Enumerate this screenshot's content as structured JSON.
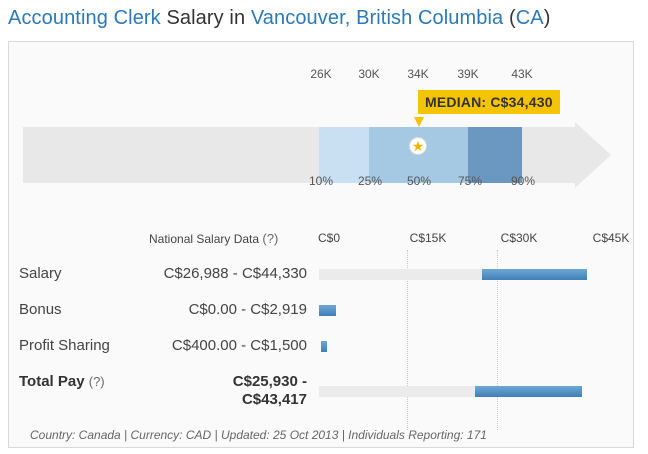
{
  "title": {
    "job": "Accounting Clerk",
    "mid": " Salary in ",
    "location": "Vancouver, British Columbia",
    "open_paren": " (",
    "country": "CA",
    "close_paren": ")"
  },
  "distribution": {
    "top_ticks": [
      "26K",
      "30K",
      "34K",
      "39K",
      "43K"
    ],
    "bottom_ticks": [
      "10%",
      "25%",
      "50%",
      "75%",
      "90%"
    ],
    "median_label": "MEDIAN: C$34,430",
    "median_value": 34430,
    "colors": {
      "band_10_25": "#c8e0f1",
      "band_25_75": "#a5c8e3",
      "band_75_90": "#6a98c0",
      "track": "#e8e8e8"
    }
  },
  "table": {
    "header": {
      "label": "National Salary Data",
      "help": "(?)"
    },
    "scale": [
      "C$0",
      "C$15K",
      "C$30K",
      "C$45K"
    ],
    "scale_max": 45000,
    "rows": [
      {
        "label": "Salary",
        "range": "C$26,988 - C$44,330",
        "low": 26988,
        "high": 44330
      },
      {
        "label": "Bonus",
        "range": "C$0.00 - C$2,919",
        "low": 0,
        "high": 2919
      },
      {
        "label": "Profit Sharing",
        "range": "C$400.00 - C$1,500",
        "low": 400,
        "high": 1500
      },
      {
        "label": "Total Pay",
        "help": "(?)",
        "range_line1": "C$25,930 -",
        "range_line2": "C$43,417",
        "low": 25930,
        "high": 43417
      }
    ]
  },
  "footer": "Country: Canada | Currency: CAD | Updated: 25 Oct 2013 | Individuals Reporting: 171"
}
